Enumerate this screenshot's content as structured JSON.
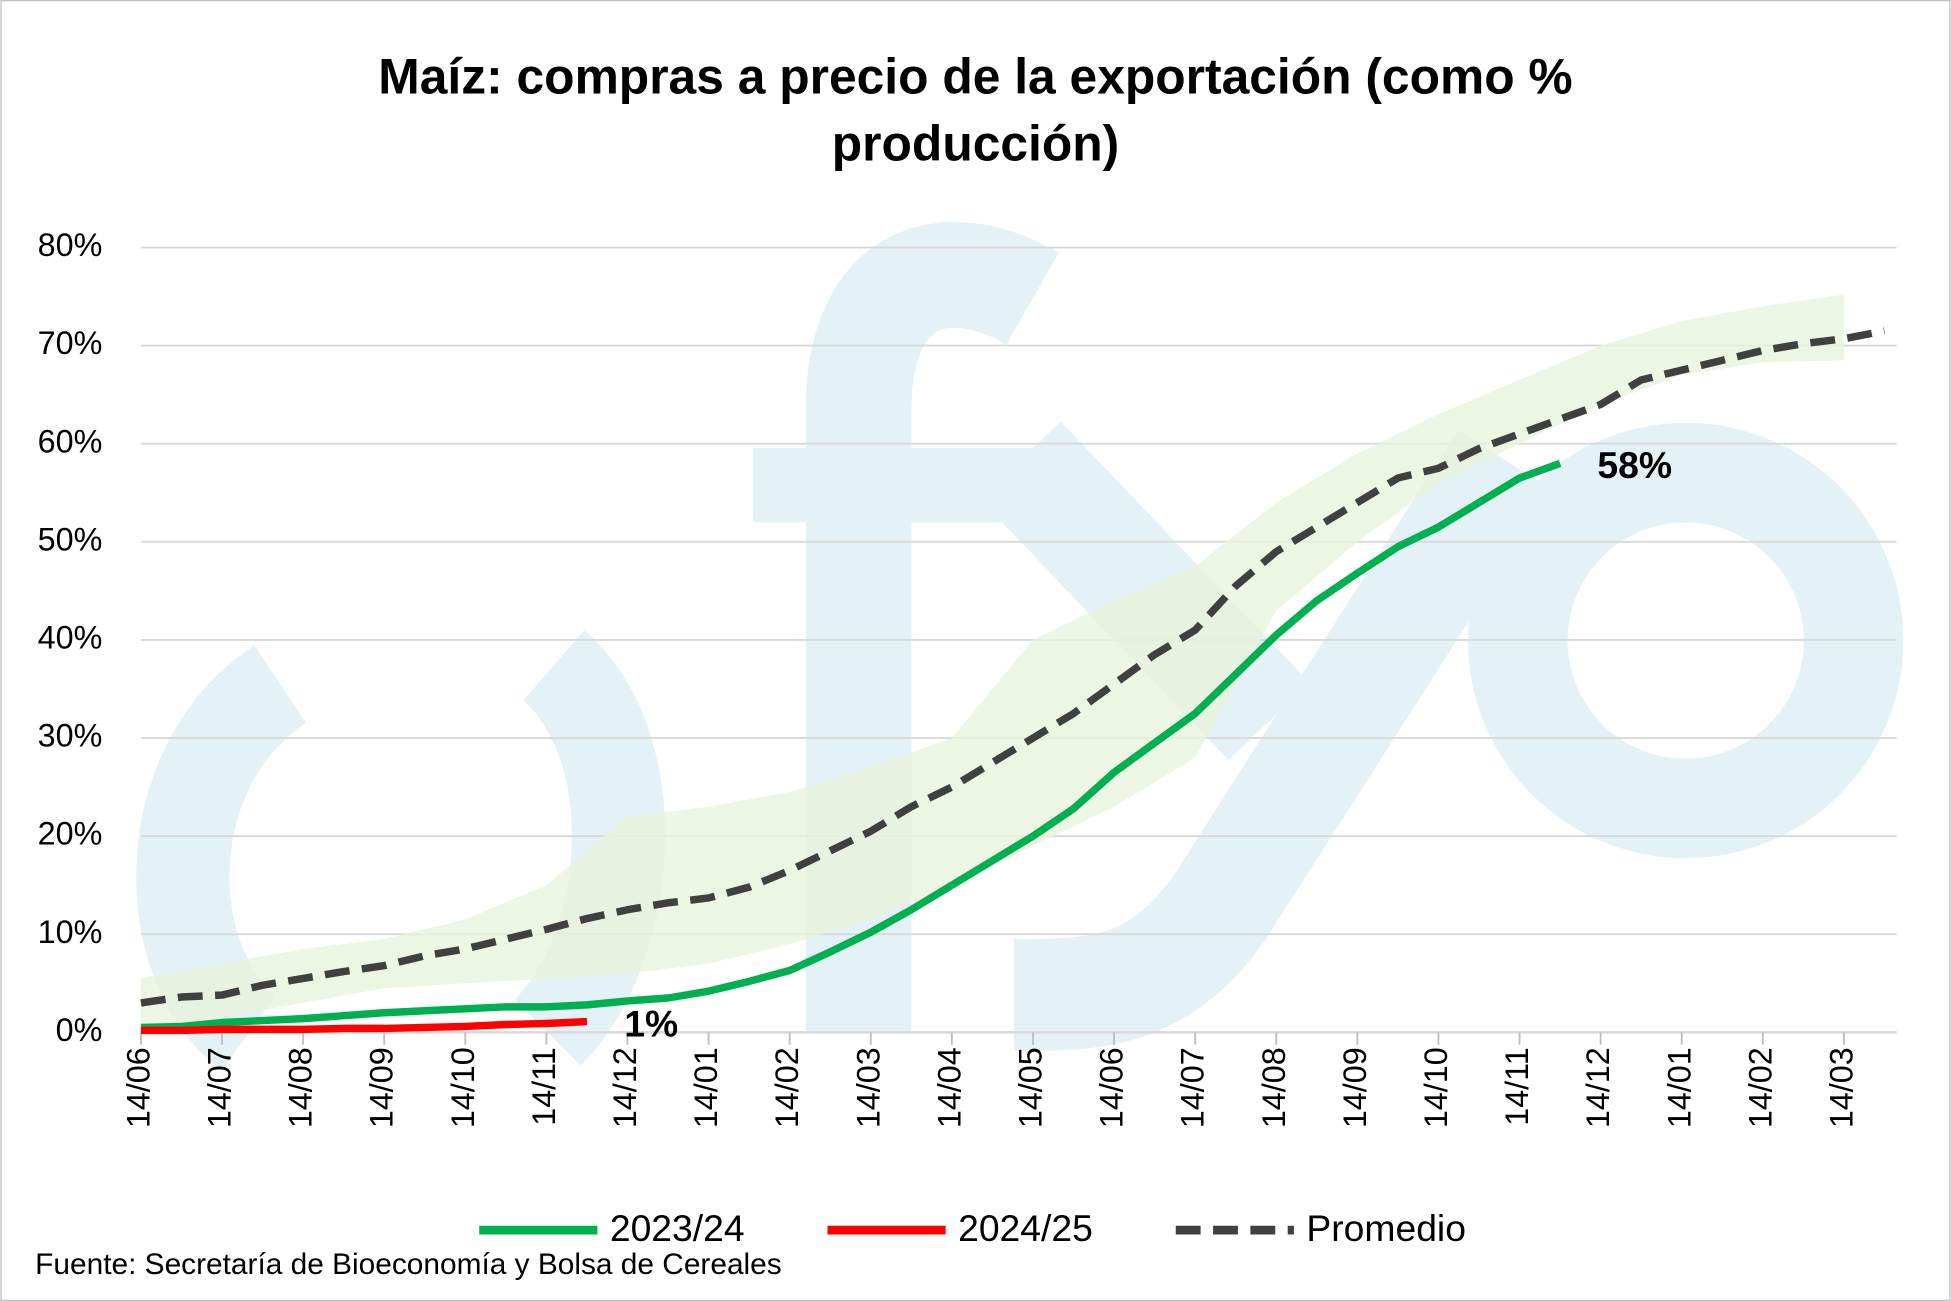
{
  "chart_data": {
    "type": "line",
    "title": "Maíz: compras a precio de la exportación (como % producción)",
    "source": "Fuente: Secretaría de Bioeconomía y Bolsa de Cereales",
    "xlim": [
      0,
      21.65
    ],
    "xticks": [
      {
        "value": 0,
        "label": "14/06"
      },
      {
        "value": 1,
        "label": "14/07"
      },
      {
        "value": 2,
        "label": "14/08"
      },
      {
        "value": 3,
        "label": "14/09"
      },
      {
        "value": 4,
        "label": "14/10"
      },
      {
        "value": 5,
        "label": "14/11"
      },
      {
        "value": 6,
        "label": "14/12"
      },
      {
        "value": 7,
        "label": "14/01"
      },
      {
        "value": 8,
        "label": "14/02"
      },
      {
        "value": 9,
        "label": "14/03"
      },
      {
        "value": 10,
        "label": "14/04"
      },
      {
        "value": 11,
        "label": "14/05"
      },
      {
        "value": 12,
        "label": "14/06"
      },
      {
        "value": 13,
        "label": "14/07"
      },
      {
        "value": 14,
        "label": "14/08"
      },
      {
        "value": 15,
        "label": "14/09"
      },
      {
        "value": 16,
        "label": "14/10"
      },
      {
        "value": 17,
        "label": "14/11"
      },
      {
        "value": 18,
        "label": "14/12"
      },
      {
        "value": 19,
        "label": "14/01"
      },
      {
        "value": 20,
        "label": "14/02"
      },
      {
        "value": 21,
        "label": "14/03"
      }
    ],
    "ylim": [
      0,
      80
    ],
    "yticks": [
      {
        "value": 0,
        "label": "0%"
      },
      {
        "value": 10,
        "label": "10%"
      },
      {
        "value": 20,
        "label": "20%"
      },
      {
        "value": 30,
        "label": "30%"
      },
      {
        "value": 40,
        "label": "40%"
      },
      {
        "value": 50,
        "label": "50%"
      },
      {
        "value": 60,
        "label": "60%"
      },
      {
        "value": 70,
        "label": "70%"
      },
      {
        "value": 80,
        "label": "80%"
      }
    ],
    "grid": true,
    "legend": "bottom",
    "x": [
      0,
      0.5,
      1,
      1.5,
      2,
      2.5,
      3,
      3.5,
      4,
      4.5,
      5,
      5.5,
      6,
      6.5,
      7,
      7.5,
      8,
      8.5,
      9,
      9.5,
      10,
      10.5,
      11,
      11.5,
      12,
      12.5,
      13,
      13.5,
      14,
      14.5,
      15,
      15.5,
      16,
      16.5,
      17,
      17.5,
      18,
      18.5,
      19,
      19.5,
      20,
      20.5,
      21,
      21.5
    ],
    "band": {
      "color": "#e9f2dc",
      "x": [
        0,
        1,
        2,
        3,
        4,
        5,
        6,
        7,
        8,
        9,
        10,
        11,
        12,
        13,
        14,
        15,
        16,
        17,
        18,
        19,
        20,
        21
      ],
      "lower": [
        0.3,
        1.5,
        3,
        4.5,
        5,
        5.5,
        6,
        7,
        9,
        11.5,
        15,
        19,
        23,
        28,
        43,
        50,
        56,
        60,
        64,
        67,
        68.3,
        68.5
      ],
      "upper": [
        5.5,
        7,
        8.5,
        9.5,
        11.5,
        15,
        22,
        23,
        24.5,
        27,
        30,
        40,
        44,
        47.5,
        54,
        59,
        63,
        66.5,
        70,
        72.5,
        74,
        75.2
      ]
    },
    "series": [
      {
        "name": "2023/24",
        "color": "#00b050",
        "dash": false,
        "values": [
          0.5,
          0.6,
          1,
          1.2,
          1.4,
          1.7,
          2,
          2.2,
          2.4,
          2.6,
          2.6,
          2.8,
          3.2,
          3.5,
          4.2,
          5.2,
          6.3,
          8.2,
          10.2,
          12.5,
          15,
          17.5,
          20,
          22.8,
          26.5,
          29.5,
          32.5,
          36.5,
          40.5,
          44,
          46.8,
          49.5,
          51.5,
          54,
          56.5,
          58,
          null,
          null,
          null,
          null,
          null,
          null,
          null,
          null
        ],
        "value_labels": [
          null,
          null,
          null,
          null,
          null,
          null,
          null,
          null,
          null,
          null,
          null,
          null,
          null,
          null,
          null,
          null,
          null,
          null,
          null,
          null,
          null,
          null,
          null,
          null,
          null,
          null,
          null,
          null,
          null,
          null,
          null,
          null,
          null,
          null,
          null,
          "58%",
          null,
          null,
          null,
          null,
          null,
          null,
          null,
          null
        ]
      },
      {
        "name": "2024/25",
        "color": "#ff0000",
        "dash": false,
        "values": [
          0.2,
          0.2,
          0.3,
          0.3,
          0.3,
          0.4,
          0.4,
          0.5,
          0.6,
          0.8,
          0.9,
          1.1,
          null,
          null,
          null,
          null,
          null,
          null,
          null,
          null,
          null,
          null,
          null,
          null,
          null,
          null,
          null,
          null,
          null,
          null,
          null,
          null,
          null,
          null,
          null,
          null,
          null,
          null,
          null,
          null,
          null,
          null,
          null,
          null
        ],
        "value_labels": [
          null,
          null,
          null,
          null,
          null,
          null,
          null,
          null,
          null,
          null,
          null,
          "1%",
          null,
          null,
          null,
          null,
          null,
          null,
          null,
          null,
          null,
          null,
          null,
          null,
          null,
          null,
          null,
          null,
          null,
          null,
          null,
          null,
          null,
          null,
          null,
          null,
          null,
          null,
          null,
          null,
          null,
          null,
          null,
          null
        ]
      },
      {
        "name": "Promedio",
        "color": "#404040",
        "dash": true,
        "values": [
          3,
          3.6,
          3.8,
          4.8,
          5.5,
          6.2,
          6.8,
          7.8,
          8.5,
          9.5,
          10.5,
          11.6,
          12.5,
          13.2,
          13.7,
          14.8,
          16.5,
          18.5,
          20.5,
          23,
          25,
          27.5,
          30,
          32.5,
          35.5,
          38.5,
          41,
          45.5,
          49,
          51.5,
          54,
          56.5,
          57.5,
          59.5,
          61,
          62.5,
          64,
          66.5,
          67.5,
          68.5,
          69.5,
          70.2,
          70.7,
          71.5
        ]
      }
    ]
  }
}
